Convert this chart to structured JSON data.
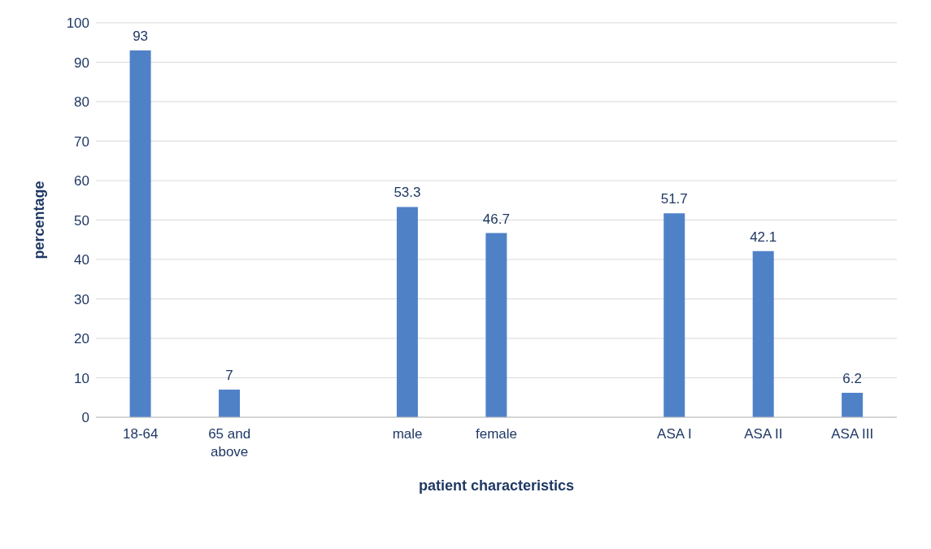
{
  "chart_data": {
    "type": "bar",
    "xlabel": "patient characteristics",
    "ylabel": "percentage",
    "categories": [
      "18-64",
      "65 and above",
      null,
      "male",
      "female",
      null,
      "ASA I",
      "ASA II",
      "ASA III"
    ],
    "values": [
      93,
      7,
      null,
      53.3,
      46.7,
      null,
      51.7,
      42.1,
      6.2
    ],
    "color": "#4f81c7",
    "ylim": [
      0,
      100
    ],
    "yticks": [
      0,
      10,
      20,
      30,
      40,
      50,
      60,
      70,
      80,
      90,
      100
    ],
    "grid": "y",
    "data_labels": true
  }
}
